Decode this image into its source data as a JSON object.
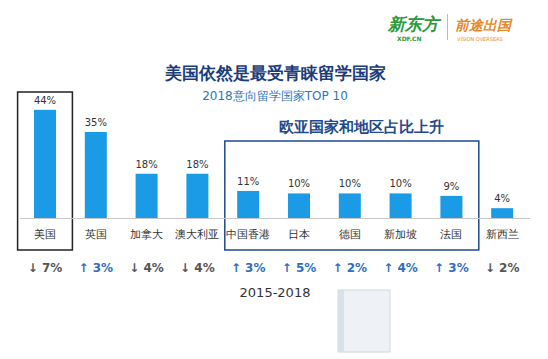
{
  "chart_data": {
    "type": "bar",
    "title": "美国依然是最受青睐留学国家",
    "subtitle": "2018意向留学国家TOP 10",
    "categories": [
      "美国",
      "英国",
      "加拿大",
      "澳大利亚",
      "中国香港",
      "日本",
      "德国",
      "新加坡",
      "法国",
      "新西兰"
    ],
    "values": [
      44,
      35,
      18,
      18,
      11,
      10,
      10,
      10,
      9,
      4
    ],
    "value_labels": [
      "44%",
      "35%",
      "18%",
      "18%",
      "11%",
      "10%",
      "10%",
      "10%",
      "9%",
      "4%"
    ],
    "changes": [
      -7,
      3,
      -4,
      -4,
      3,
      5,
      2,
      4,
      3,
      -2
    ],
    "change_labels": [
      "↓ 7%",
      "↑ 3%",
      "↓ 4%",
      "↓ 4%",
      "↑ 3%",
      "↑ 5%",
      "↑ 2%",
      "↑ 4%",
      "↑ 3%",
      "↓ 2%"
    ],
    "change_period": "2015-2018",
    "boxes": [
      {
        "from": "美国",
        "to": "美国",
        "color": "#222222"
      },
      {
        "from": "中国香港",
        "to": "法国",
        "color": "#1f4a8c",
        "text": "欧亚国家和地区占比上升"
      }
    ],
    "logos": [
      "新东方",
      "XDF.CN",
      "前途出国",
      "VISION OVERSEAS"
    ],
    "color": "#1b9ae6",
    "ylim": [
      0,
      48
    ],
    "data_labels": true,
    "tick_labels": "x",
    "grid": false
  }
}
